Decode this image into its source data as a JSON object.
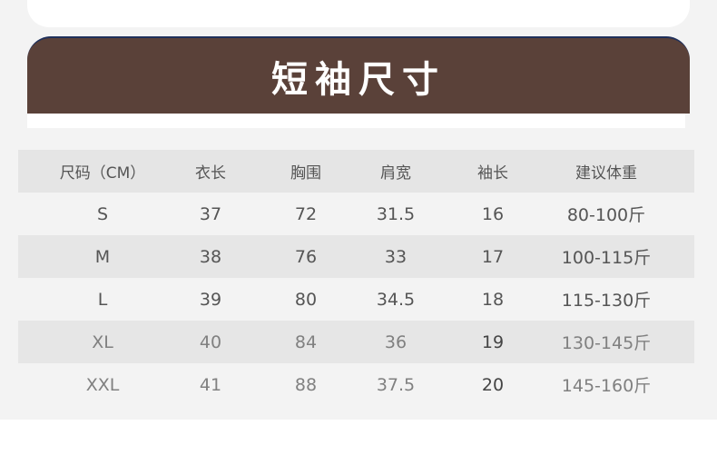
{
  "title": "短袖尺寸",
  "colors": {
    "banner": "#5a4139",
    "background": "#f3f3f3",
    "header_row": "#e5e5e5"
  },
  "table": {
    "headers": [
      "尺码（CM）",
      "衣长",
      "胸围",
      "肩宽",
      "袖长",
      "建议体重"
    ],
    "rows": [
      [
        "S",
        "37",
        "72",
        "31.5",
        "16",
        "80-100斤"
      ],
      [
        "M",
        "38",
        "76",
        "33",
        "17",
        "100-115斤"
      ],
      [
        "L",
        "39",
        "80",
        "34.5",
        "18",
        "115-130斤"
      ],
      [
        "XL",
        "40",
        "84",
        "36",
        "19",
        "130-145斤"
      ],
      [
        "XXL",
        "41",
        "88",
        "37.5",
        "20",
        "145-160斤"
      ]
    ]
  }
}
